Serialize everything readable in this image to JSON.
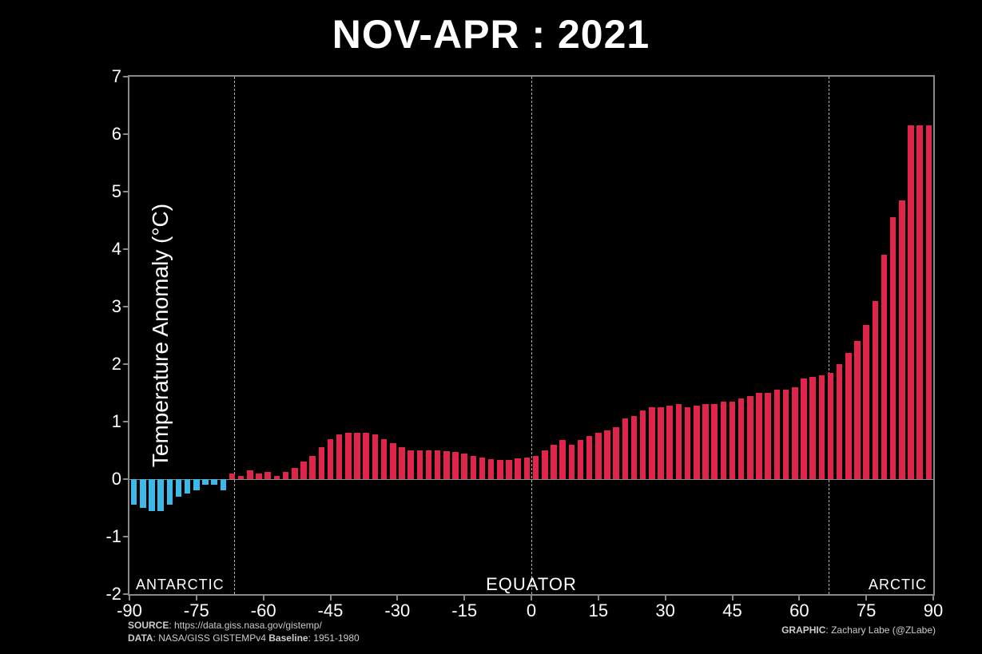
{
  "title": "NOV-APR : 2021",
  "ylabel": "Temperature Anomaly (°C)",
  "chart": {
    "type": "bar",
    "background_color": "#000000",
    "axis_color": "#888888",
    "text_color": "#ffffff",
    "grid_dash_color": "#aaaaaa",
    "xlim": [
      -90,
      90
    ],
    "ylim": [
      -2,
      7
    ],
    "yticks": [
      -2,
      -1,
      0,
      1,
      2,
      3,
      4,
      5,
      6,
      7
    ],
    "xticks": [
      -90,
      -75,
      -60,
      -45,
      -30,
      -15,
      0,
      15,
      30,
      45,
      60,
      75,
      90
    ],
    "vlines": [
      -66.5,
      0,
      66.5
    ],
    "bar_width": 1.35,
    "negative_color": "#3db8e8",
    "positive_color": "#e0244a",
    "region_labels": {
      "antarctic": "ANTARCTIC",
      "equator": "EQUATOR",
      "arctic": "ARCTIC"
    },
    "series": [
      {
        "x": -89,
        "y": -0.45
      },
      {
        "x": -87,
        "y": -0.5
      },
      {
        "x": -85,
        "y": -0.55
      },
      {
        "x": -83,
        "y": -0.55
      },
      {
        "x": -81,
        "y": -0.45
      },
      {
        "x": -79,
        "y": -0.3
      },
      {
        "x": -77,
        "y": -0.25
      },
      {
        "x": -75,
        "y": -0.2
      },
      {
        "x": -73,
        "y": -0.1
      },
      {
        "x": -71,
        "y": -0.1
      },
      {
        "x": -69,
        "y": -0.2
      },
      {
        "x": -67,
        "y": 0.1
      },
      {
        "x": -65,
        "y": 0.05
      },
      {
        "x": -63,
        "y": 0.15
      },
      {
        "x": -61,
        "y": 0.1
      },
      {
        "x": -59,
        "y": 0.12
      },
      {
        "x": -57,
        "y": 0.05
      },
      {
        "x": -55,
        "y": 0.12
      },
      {
        "x": -53,
        "y": 0.2
      },
      {
        "x": -51,
        "y": 0.3
      },
      {
        "x": -49,
        "y": 0.4
      },
      {
        "x": -47,
        "y": 0.55
      },
      {
        "x": -45,
        "y": 0.7
      },
      {
        "x": -43,
        "y": 0.78
      },
      {
        "x": -41,
        "y": 0.8
      },
      {
        "x": -39,
        "y": 0.8
      },
      {
        "x": -37,
        "y": 0.8
      },
      {
        "x": -35,
        "y": 0.78
      },
      {
        "x": -33,
        "y": 0.7
      },
      {
        "x": -31,
        "y": 0.63
      },
      {
        "x": -29,
        "y": 0.55
      },
      {
        "x": -27,
        "y": 0.5
      },
      {
        "x": -25,
        "y": 0.5
      },
      {
        "x": -23,
        "y": 0.5
      },
      {
        "x": -21,
        "y": 0.5
      },
      {
        "x": -19,
        "y": 0.48
      },
      {
        "x": -17,
        "y": 0.47
      },
      {
        "x": -15,
        "y": 0.44
      },
      {
        "x": -13,
        "y": 0.4
      },
      {
        "x": -11,
        "y": 0.38
      },
      {
        "x": -9,
        "y": 0.35
      },
      {
        "x": -7,
        "y": 0.34
      },
      {
        "x": -5,
        "y": 0.34
      },
      {
        "x": -3,
        "y": 0.36
      },
      {
        "x": -1,
        "y": 0.38
      },
      {
        "x": 1,
        "y": 0.4
      },
      {
        "x": 3,
        "y": 0.5
      },
      {
        "x": 5,
        "y": 0.6
      },
      {
        "x": 7,
        "y": 0.68
      },
      {
        "x": 9,
        "y": 0.6
      },
      {
        "x": 11,
        "y": 0.68
      },
      {
        "x": 13,
        "y": 0.75
      },
      {
        "x": 15,
        "y": 0.8
      },
      {
        "x": 17,
        "y": 0.85
      },
      {
        "x": 19,
        "y": 0.9
      },
      {
        "x": 21,
        "y": 1.05
      },
      {
        "x": 23,
        "y": 1.1
      },
      {
        "x": 25,
        "y": 1.2
      },
      {
        "x": 27,
        "y": 1.25
      },
      {
        "x": 29,
        "y": 1.25
      },
      {
        "x": 31,
        "y": 1.28
      },
      {
        "x": 33,
        "y": 1.3
      },
      {
        "x": 35,
        "y": 1.25
      },
      {
        "x": 37,
        "y": 1.28
      },
      {
        "x": 39,
        "y": 1.3
      },
      {
        "x": 41,
        "y": 1.3
      },
      {
        "x": 43,
        "y": 1.35
      },
      {
        "x": 45,
        "y": 1.35
      },
      {
        "x": 47,
        "y": 1.4
      },
      {
        "x": 49,
        "y": 1.45
      },
      {
        "x": 51,
        "y": 1.5
      },
      {
        "x": 53,
        "y": 1.5
      },
      {
        "x": 55,
        "y": 1.55
      },
      {
        "x": 57,
        "y": 1.55
      },
      {
        "x": 59,
        "y": 1.6
      },
      {
        "x": 61,
        "y": 1.75
      },
      {
        "x": 63,
        "y": 1.78
      },
      {
        "x": 65,
        "y": 1.8
      },
      {
        "x": 67,
        "y": 1.85
      },
      {
        "x": 69,
        "y": 2.0
      },
      {
        "x": 71,
        "y": 2.2
      },
      {
        "x": 73,
        "y": 2.4
      },
      {
        "x": 75,
        "y": 2.68
      },
      {
        "x": 77,
        "y": 3.1
      },
      {
        "x": 79,
        "y": 3.9
      },
      {
        "x": 81,
        "y": 4.55
      },
      {
        "x": 83,
        "y": 4.85
      },
      {
        "x": 85,
        "y": 6.15
      },
      {
        "x": 87,
        "y": 6.15
      },
      {
        "x": 89,
        "y": 6.15
      }
    ]
  },
  "footer": {
    "source_label": "SOURCE",
    "source_value": ": https://data.giss.nasa.gov/gistemp/",
    "data_label": "DATA",
    "data_value": ": NASA/GISS GISTEMPv4 ",
    "baseline_label": "Baseline",
    "baseline_value": ": 1951-1980",
    "graphic_label": "GRAPHIC",
    "graphic_value": ": Zachary Labe (@ZLabe)"
  }
}
